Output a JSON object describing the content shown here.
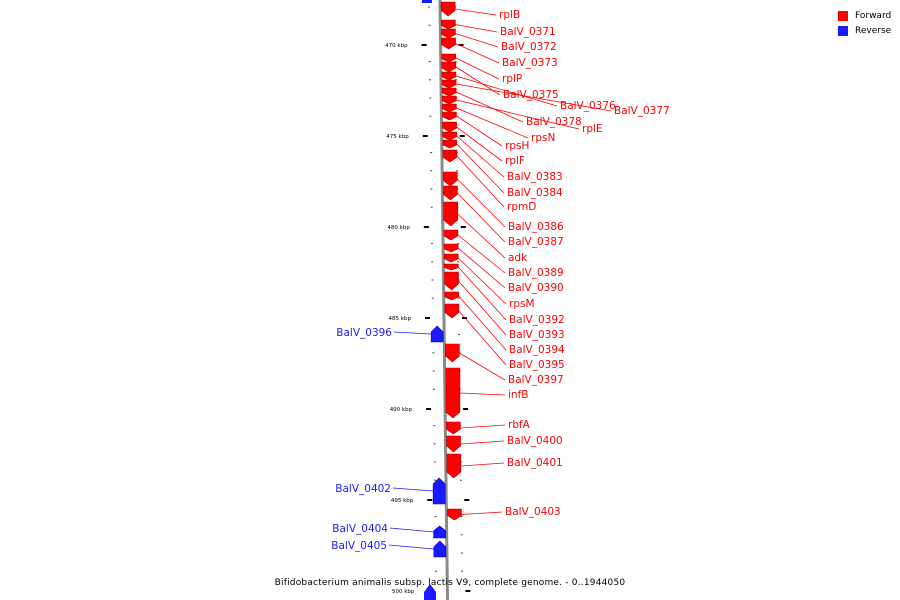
{
  "legend": {
    "forward_label": "Forward",
    "reverse_label": "Reverse",
    "forward_color": "#ff0000",
    "reverse_color": "#1a1aff"
  },
  "caption": "Bifidobacterium animalis subsp. lactis V9, complete genome. - 0..1944050",
  "axis": {
    "major_tick_labels": [
      "470 kbp",
      "475 kbp",
      "480 kbp",
      "485 kbp",
      "490 kbp",
      "495 kbp",
      "500 kbp"
    ]
  },
  "forward_genes": [
    "rplB",
    "BalV_0371",
    "BalV_0372",
    "BalV_0373",
    "rplP",
    "BalV_0375",
    "BalV_0376",
    "BalV_0377",
    "BalV_0378",
    "rplE",
    "rpsN",
    "rpsH",
    "rplF",
    "BalV_0383",
    "BalV_0384",
    "rpmD",
    "BalV_0386",
    "BalV_0387",
    "adk",
    "BalV_0389",
    "BalV_0390",
    "rpsM",
    "BalV_0392",
    "BalV_0393",
    "BalV_0394",
    "BalV_0395",
    "BalV_0397",
    "infB",
    "rbfA",
    "BalV_0400",
    "BalV_0401",
    "BalV_0403"
  ],
  "reverse_genes": [
    "BalV_0396",
    "BalV_0402",
    "BalV_0404",
    "BalV_0405"
  ]
}
